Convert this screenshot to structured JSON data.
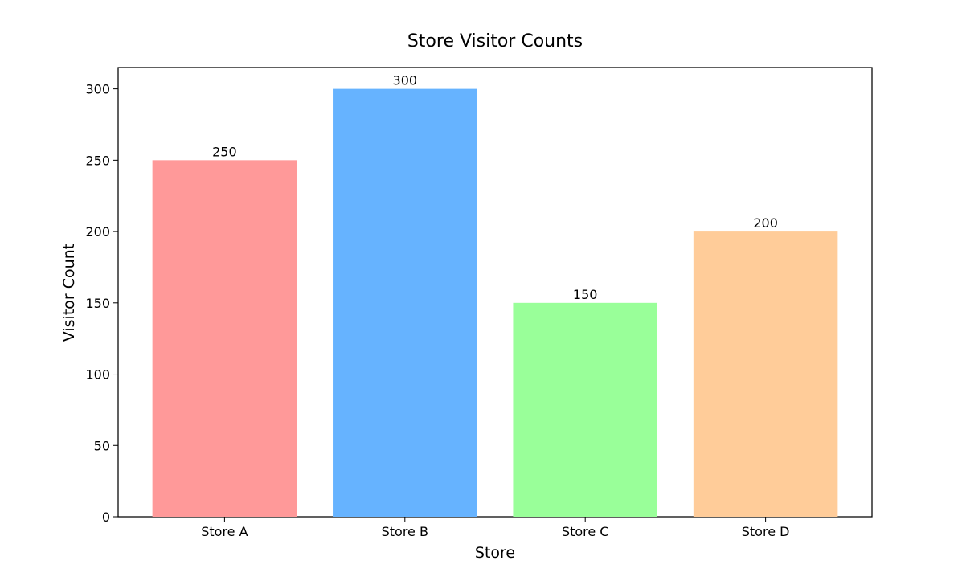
{
  "chart_data": {
    "type": "bar",
    "title": "Store Visitor Counts",
    "xlabel": "Store",
    "ylabel": "Visitor Count",
    "categories": [
      "Store A",
      "Store B",
      "Store C",
      "Store D"
    ],
    "values": [
      250,
      300,
      150,
      200
    ],
    "colors": [
      "#ff9999",
      "#66b3ff",
      "#99ff99",
      "#ffcc99"
    ],
    "ylim": [
      0,
      315
    ],
    "yticks": [
      0,
      50,
      100,
      150,
      200,
      250,
      300
    ],
    "grid": false,
    "data_labels": true
  }
}
